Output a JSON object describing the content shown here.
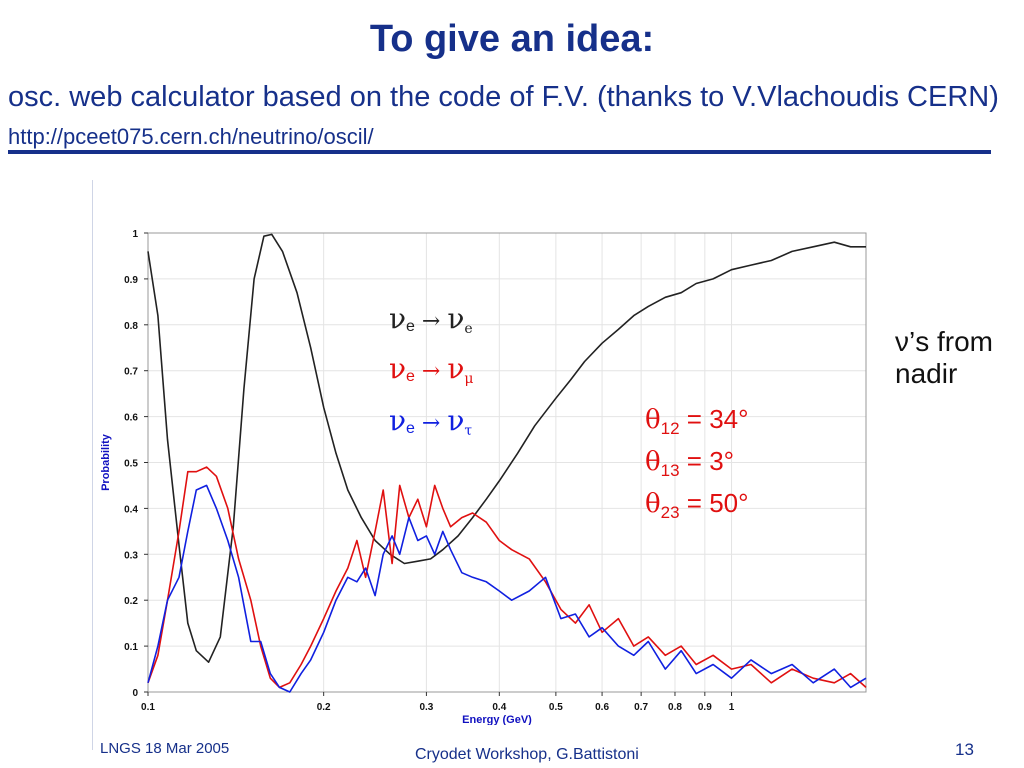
{
  "slide": {
    "title": "To give an idea:",
    "subtitle_text": "osc. web calculator based on the code of F.V. (thanks to V.Vlachoudis CERN)",
    "subtitle_url": "http://pceet075.cern.ch/neutrino/oscil/",
    "side_note_line1": "ν’s from",
    "side_note_line2": "nadir",
    "footer_left": "LNGS 18 Mar 2005",
    "footer_center": "Cryodet Workshop, G.Battistoni",
    "page_number": "13"
  },
  "colors": {
    "title": "#16308a",
    "ee": "#222222",
    "emu": "#e01010",
    "etau": "#1020e0",
    "axis_label": "#1010c0",
    "angles": "#e01010"
  },
  "chart_data": {
    "type": "line",
    "xlabel": "Energy (GeV)",
    "ylabel": "Probability",
    "xscale": "log",
    "xlim": [
      0.1,
      1.7
    ],
    "ylim": [
      0,
      1
    ],
    "x_ticks": [
      0.1,
      0.2,
      0.3,
      0.4,
      0.5,
      0.6,
      0.7,
      0.8,
      0.9,
      1
    ],
    "x_tick_labels": [
      "0.1",
      "0.2",
      "0.3",
      "0.4",
      "0.5",
      "0.6",
      "0.7",
      "0.8",
      "0.9",
      "1"
    ],
    "y_ticks": [
      0,
      0.1,
      0.2,
      0.3,
      0.4,
      0.5,
      0.6,
      0.7,
      0.8,
      0.9,
      1
    ],
    "y_tick_labels": [
      "0",
      "0.1",
      "0.2",
      "0.3",
      "0.4",
      "0.5",
      "0.6",
      "0.7",
      "0.8",
      "0.9",
      "1"
    ],
    "legend": [
      {
        "from": "ν",
        "from_sub": "e",
        "to": "ν",
        "to_sub": "e",
        "color": "#222222"
      },
      {
        "from": "ν",
        "from_sub": "e",
        "to": "ν",
        "to_sub": "μ",
        "color": "#e01010"
      },
      {
        "from": "ν",
        "from_sub": "e",
        "to": "ν",
        "to_sub": "τ",
        "color": "#1020e0"
      }
    ],
    "legend_arrow": "→",
    "annotations": [
      {
        "symbol": "θ",
        "sub": "12",
        "text": " = 34°"
      },
      {
        "symbol": "θ",
        "sub": "13",
        "text": " = 3°"
      },
      {
        "symbol": "θ",
        "sub": "23",
        "text": " = 50°"
      }
    ],
    "series": [
      {
        "name": "νe → νe",
        "color": "#222222",
        "points": [
          [
            0.1,
            0.96
          ],
          [
            0.104,
            0.82
          ],
          [
            0.108,
            0.55
          ],
          [
            0.113,
            0.32
          ],
          [
            0.117,
            0.15
          ],
          [
            0.121,
            0.09
          ],
          [
            0.127,
            0.065
          ],
          [
            0.133,
            0.12
          ],
          [
            0.14,
            0.36
          ],
          [
            0.146,
            0.66
          ],
          [
            0.152,
            0.9
          ],
          [
            0.158,
            0.993
          ],
          [
            0.163,
            0.997
          ],
          [
            0.17,
            0.96
          ],
          [
            0.18,
            0.87
          ],
          [
            0.19,
            0.75
          ],
          [
            0.2,
            0.62
          ],
          [
            0.21,
            0.52
          ],
          [
            0.22,
            0.44
          ],
          [
            0.232,
            0.38
          ],
          [
            0.245,
            0.33
          ],
          [
            0.26,
            0.3
          ],
          [
            0.275,
            0.28
          ],
          [
            0.29,
            0.285
          ],
          [
            0.305,
            0.29
          ],
          [
            0.32,
            0.31
          ],
          [
            0.34,
            0.34
          ],
          [
            0.36,
            0.38
          ],
          [
            0.38,
            0.42
          ],
          [
            0.4,
            0.46
          ],
          [
            0.43,
            0.52
          ],
          [
            0.46,
            0.58
          ],
          [
            0.5,
            0.64
          ],
          [
            0.53,
            0.68
          ],
          [
            0.56,
            0.72
          ],
          [
            0.6,
            0.76
          ],
          [
            0.64,
            0.79
          ],
          [
            0.68,
            0.82
          ],
          [
            0.72,
            0.84
          ],
          [
            0.77,
            0.86
          ],
          [
            0.82,
            0.87
          ],
          [
            0.87,
            0.89
          ],
          [
            0.93,
            0.9
          ],
          [
            1.0,
            0.92
          ],
          [
            1.08,
            0.93
          ],
          [
            1.17,
            0.94
          ],
          [
            1.27,
            0.96
          ],
          [
            1.38,
            0.97
          ],
          [
            1.5,
            0.98
          ],
          [
            1.6,
            0.97
          ],
          [
            1.7,
            0.97
          ]
        ]
      },
      {
        "name": "νe → νμ",
        "color": "#e01010",
        "points": [
          [
            0.1,
            0.02
          ],
          [
            0.104,
            0.08
          ],
          [
            0.108,
            0.2
          ],
          [
            0.113,
            0.35
          ],
          [
            0.117,
            0.48
          ],
          [
            0.121,
            0.48
          ],
          [
            0.126,
            0.49
          ],
          [
            0.131,
            0.47
          ],
          [
            0.137,
            0.4
          ],
          [
            0.143,
            0.29
          ],
          [
            0.15,
            0.2
          ],
          [
            0.156,
            0.1
          ],
          [
            0.162,
            0.03
          ],
          [
            0.168,
            0.01
          ],
          [
            0.175,
            0.02
          ],
          [
            0.183,
            0.06
          ],
          [
            0.19,
            0.1
          ],
          [
            0.2,
            0.16
          ],
          [
            0.21,
            0.22
          ],
          [
            0.22,
            0.27
          ],
          [
            0.228,
            0.33
          ],
          [
            0.236,
            0.25
          ],
          [
            0.245,
            0.35
          ],
          [
            0.253,
            0.44
          ],
          [
            0.262,
            0.28
          ],
          [
            0.27,
            0.45
          ],
          [
            0.28,
            0.38
          ],
          [
            0.29,
            0.42
          ],
          [
            0.3,
            0.36
          ],
          [
            0.31,
            0.45
          ],
          [
            0.32,
            0.4
          ],
          [
            0.33,
            0.36
          ],
          [
            0.345,
            0.38
          ],
          [
            0.36,
            0.39
          ],
          [
            0.38,
            0.37
          ],
          [
            0.4,
            0.33
          ],
          [
            0.42,
            0.31
          ],
          [
            0.45,
            0.29
          ],
          [
            0.48,
            0.24
          ],
          [
            0.51,
            0.18
          ],
          [
            0.54,
            0.15
          ],
          [
            0.57,
            0.19
          ],
          [
            0.6,
            0.13
          ],
          [
            0.64,
            0.16
          ],
          [
            0.68,
            0.1
          ],
          [
            0.72,
            0.12
          ],
          [
            0.77,
            0.08
          ],
          [
            0.82,
            0.1
          ],
          [
            0.87,
            0.06
          ],
          [
            0.93,
            0.08
          ],
          [
            1.0,
            0.05
          ],
          [
            1.08,
            0.06
          ],
          [
            1.17,
            0.02
          ],
          [
            1.27,
            0.05
          ],
          [
            1.38,
            0.03
          ],
          [
            1.5,
            0.02
          ],
          [
            1.6,
            0.04
          ],
          [
            1.7,
            0.01
          ]
        ]
      },
      {
        "name": "νe → ντ",
        "color": "#1020e0",
        "points": [
          [
            0.1,
            0.02
          ],
          [
            0.104,
            0.1
          ],
          [
            0.108,
            0.2
          ],
          [
            0.113,
            0.25
          ],
          [
            0.117,
            0.35
          ],
          [
            0.121,
            0.44
          ],
          [
            0.126,
            0.45
          ],
          [
            0.131,
            0.4
          ],
          [
            0.137,
            0.33
          ],
          [
            0.143,
            0.25
          ],
          [
            0.15,
            0.11
          ],
          [
            0.156,
            0.11
          ],
          [
            0.162,
            0.04
          ],
          [
            0.168,
            0.01
          ],
          [
            0.175,
            0.0
          ],
          [
            0.183,
            0.04
          ],
          [
            0.19,
            0.07
          ],
          [
            0.2,
            0.13
          ],
          [
            0.21,
            0.2
          ],
          [
            0.22,
            0.25
          ],
          [
            0.228,
            0.24
          ],
          [
            0.236,
            0.27
          ],
          [
            0.245,
            0.21
          ],
          [
            0.253,
            0.3
          ],
          [
            0.262,
            0.34
          ],
          [
            0.27,
            0.3
          ],
          [
            0.28,
            0.38
          ],
          [
            0.29,
            0.33
          ],
          [
            0.3,
            0.34
          ],
          [
            0.31,
            0.3
          ],
          [
            0.32,
            0.35
          ],
          [
            0.33,
            0.31
          ],
          [
            0.345,
            0.26
          ],
          [
            0.36,
            0.25
          ],
          [
            0.38,
            0.24
          ],
          [
            0.4,
            0.22
          ],
          [
            0.42,
            0.2
          ],
          [
            0.45,
            0.22
          ],
          [
            0.48,
            0.25
          ],
          [
            0.51,
            0.16
          ],
          [
            0.54,
            0.17
          ],
          [
            0.57,
            0.12
          ],
          [
            0.6,
            0.14
          ],
          [
            0.64,
            0.1
          ],
          [
            0.68,
            0.08
          ],
          [
            0.72,
            0.11
          ],
          [
            0.77,
            0.05
          ],
          [
            0.82,
            0.09
          ],
          [
            0.87,
            0.04
          ],
          [
            0.93,
            0.06
          ],
          [
            1.0,
            0.03
          ],
          [
            1.08,
            0.07
          ],
          [
            1.17,
            0.04
          ],
          [
            1.27,
            0.06
          ],
          [
            1.38,
            0.02
          ],
          [
            1.5,
            0.05
          ],
          [
            1.6,
            0.01
          ],
          [
            1.7,
            0.03
          ]
        ]
      }
    ]
  }
}
